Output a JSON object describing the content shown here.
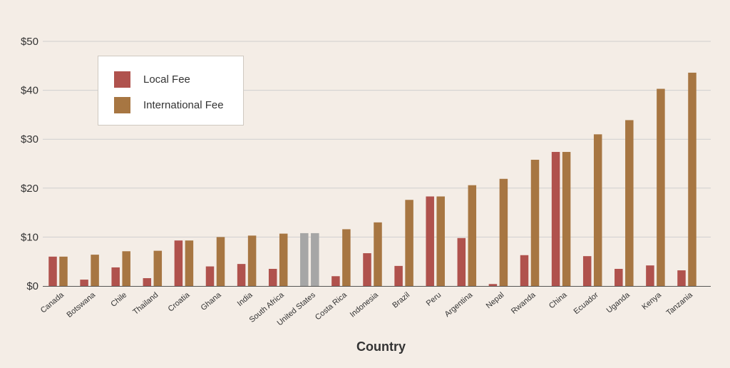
{
  "chart_data": {
    "type": "bar",
    "xlabel": "Country",
    "ylabel": "",
    "ylim": [
      0,
      50
    ],
    "yticks": [
      "$0",
      "$10",
      "$20",
      "$30",
      "$40",
      "$50"
    ],
    "ytick_values": [
      0,
      10,
      20,
      30,
      40,
      50
    ],
    "grid": true,
    "legend_position": "top-left",
    "categories": [
      "Canada",
      "Botswana",
      "Chile",
      "Thailand",
      "Croatia",
      "Ghana",
      "India",
      "South Africa",
      "United States",
      "Costa Rica",
      "Indonesia",
      "Brazil",
      "Peru",
      "Argentina",
      "Nepal",
      "Rwanda",
      "China",
      "Ecuador",
      "Uganda",
      "Kenya",
      "Tanzania"
    ],
    "series": [
      {
        "name": "Local Fee",
        "color": "#b0524d",
        "values": [
          6.0,
          1.3,
          3.8,
          1.6,
          9.3,
          4.0,
          4.5,
          3.5,
          10.8,
          2.0,
          6.7,
          4.1,
          18.3,
          9.8,
          0.4,
          6.3,
          27.4,
          6.1,
          3.5,
          4.2,
          3.2
        ]
      },
      {
        "name": "International Fee",
        "color": "#a77642",
        "values": [
          6.0,
          6.4,
          7.1,
          7.2,
          9.3,
          10.0,
          10.3,
          10.7,
          10.8,
          11.6,
          13.0,
          17.6,
          18.3,
          20.6,
          21.9,
          25.8,
          27.4,
          31.0,
          33.9,
          40.3,
          43.6
        ]
      }
    ],
    "highlight": {
      "category": "United States",
      "color": "#a6a6a6"
    },
    "colors": {
      "background": "#f4ede6",
      "grid": "#cfcfcf",
      "axis": "#555555"
    }
  },
  "legend": {
    "items": [
      {
        "label": "Local Fee",
        "color": "#b0524d"
      },
      {
        "label": "International Fee",
        "color": "#a77642"
      }
    ]
  }
}
